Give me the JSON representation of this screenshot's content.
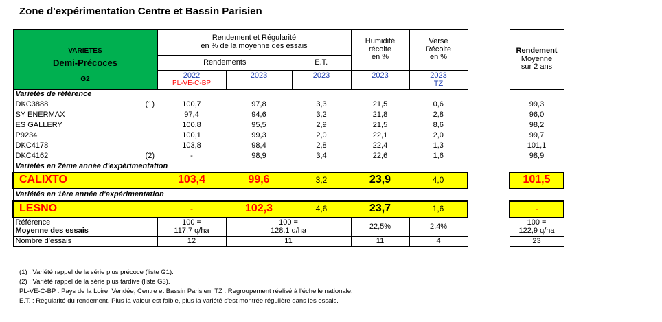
{
  "title": "Zone d'expérimentation Centre et Bassin Parisien",
  "header": {
    "varietes": "VARIETES",
    "demi": "Demi-Précoces",
    "group": "G2",
    "rendement_regularite": "Rendement et Régularité",
    "en_pct_moyenne": "en % de la moyenne des essais",
    "rendements": "Rendements",
    "et": "E.T.",
    "humidite_1": "Humidité",
    "humidite_2": "récolte",
    "humidite_3": "en %",
    "verse_1": "Verse",
    "verse_2": "Récolte",
    "verse_3": "en %",
    "y2022": "2022",
    "y2022_sub": "PL-VE-C-BP",
    "y2023a": "2023",
    "y2023b": "2023",
    "y2023c": "2023",
    "y2023d": "2023",
    "tz": "TZ"
  },
  "side_header": {
    "rendement": "Rendement",
    "moyenne": "Moyenne",
    "sur2ans": "sur 2 ans"
  },
  "sections": {
    "reference": "Variétés de référence",
    "deuxieme": "Variétés en 2ème année d'expérimentation",
    "premiere": "Variétés en 1ère année d'expérimentation"
  },
  "reference_rows": [
    {
      "name": "DKC3888",
      "note": "(1)",
      "r2022": "100,7",
      "r2023": "97,8",
      "et": "3,3",
      "hum": "21,5",
      "verse": "0,6",
      "moy": "99,3"
    },
    {
      "name": "SY ENERMAX",
      "note": "",
      "r2022": "97,4",
      "r2023": "94,6",
      "et": "3,2",
      "hum": "21,8",
      "verse": "2,8",
      "moy": "96,0"
    },
    {
      "name": "ES GALLERY",
      "note": "",
      "r2022": "100,8",
      "r2023": "95,5",
      "et": "2,9",
      "hum": "21,5",
      "verse": "8,6",
      "moy": "98,2"
    },
    {
      "name": "P9234",
      "note": "",
      "r2022": "100,1",
      "r2023": "99,3",
      "et": "2,0",
      "hum": "22,1",
      "verse": "2,0",
      "moy": "99,7"
    },
    {
      "name": "DKC4178",
      "note": "",
      "r2022": "103,8",
      "r2023": "98,4",
      "et": "2,8",
      "hum": "22,4",
      "verse": "1,3",
      "moy": "101,1"
    },
    {
      "name": "DKC4162",
      "note": "(2)",
      "r2022": "-",
      "r2023": "98,9",
      "et": "3,4",
      "hum": "22,6",
      "verse": "1,6",
      "moy": "98,9"
    }
  ],
  "calixto": {
    "name": "CALIXTO",
    "r2022": "103,4",
    "r2023": "99,6",
    "et": "3,2",
    "hum": "23,9",
    "verse": "4,0",
    "moy": "101,5"
  },
  "lesno": {
    "name": "LESNO",
    "r2022": "-",
    "r2023": "102,3",
    "et": "4,6",
    "hum": "23,7",
    "verse": "1,6",
    "moy": "-"
  },
  "reference_row": {
    "label1": "Référence",
    "label2": "Moyenne des essais",
    "r2022_1": "100 =",
    "r2022_2": "117.7 q/ha",
    "r2023_1": "100 =",
    "r2023_2": "128.1 q/ha",
    "hum": "22,5%",
    "verse": "2,4%",
    "moy_1": "100 =",
    "moy_2": "122,9 q/ha"
  },
  "nombre": {
    "label": "Nombre d'essais",
    "r2022": "12",
    "r2023": "11",
    "hum": "11",
    "verse": "4",
    "moy": "23"
  },
  "footnotes": [
    "(1) : Variété rappel de la série plus précoce (liste G1).",
    "(2) : Variété rappel de la série plus tardive (liste G3).",
    "PL-VE-C-BP : Pays de la Loire, Vendée, Centre et Bassin Parisien. TZ : Regroupement réalisé à l'échelle nationale.",
    "E.T. : Régularité du rendement. Plus la valeur est faible, plus la variété s'est montrée régulière dans les essais."
  ],
  "colors": {
    "green": "#00b050",
    "yellow": "#ffff00",
    "red": "#ff0000",
    "blue": "#1f3fb0"
  }
}
